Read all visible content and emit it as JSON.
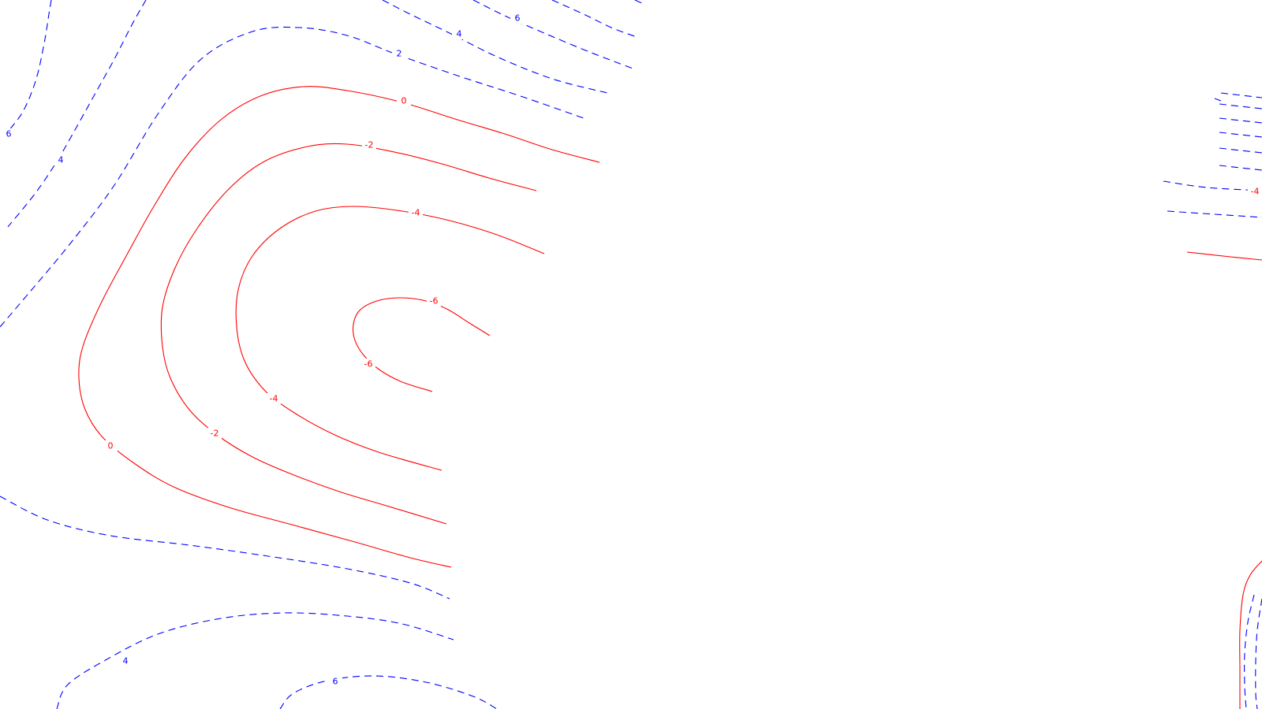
{
  "chart_data": {
    "type": "contour",
    "title": "",
    "xlabel": "",
    "ylabel": "",
    "grid": false,
    "legend": "none",
    "colors": {
      "positive": "#0000ff",
      "zero_and_negative": "#ff0000",
      "background": "#ffffff"
    },
    "line_styles": {
      "positive": "dashed",
      "zero_and_negative": "solid"
    },
    "contour_levels": [
      6,
      4,
      2,
      0,
      -2,
      -4,
      -6
    ],
    "contour_labels": [
      "6",
      "4",
      "2",
      "0",
      "-2",
      "-4",
      "-6",
      "-6",
      "-4",
      "-2",
      "0",
      "6",
      "4",
      "4",
      "6",
      "-4"
    ]
  }
}
